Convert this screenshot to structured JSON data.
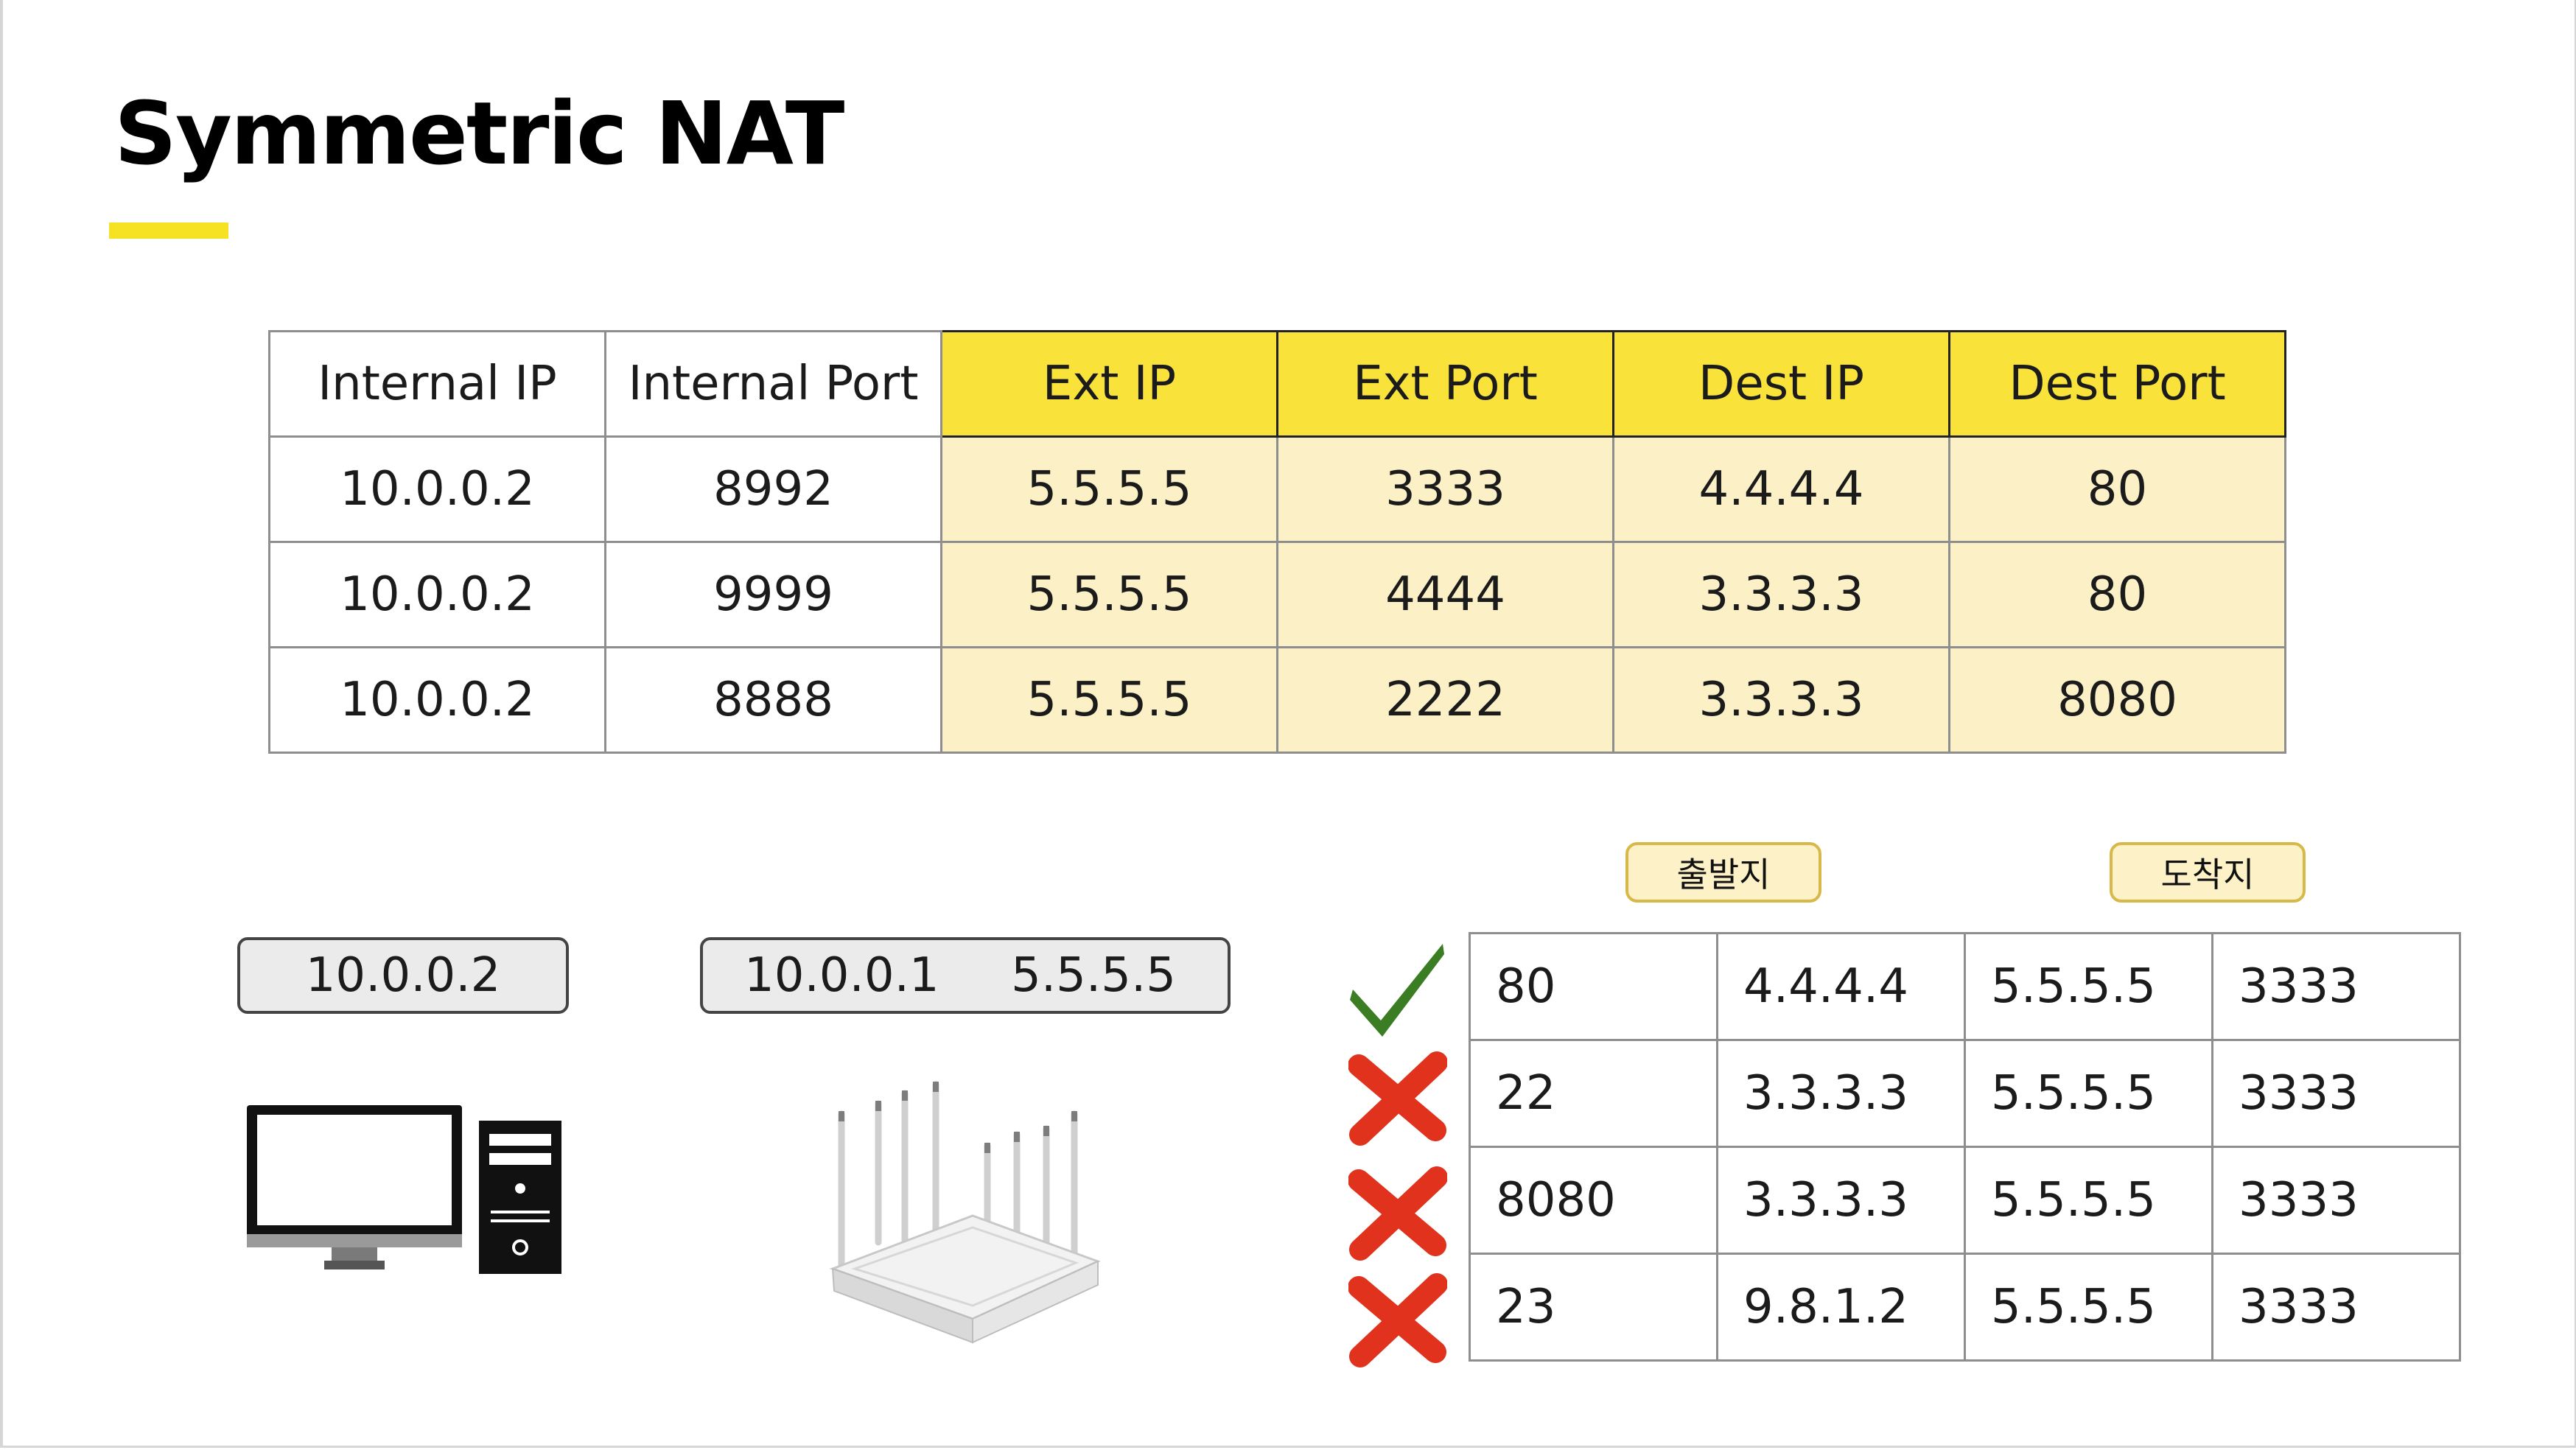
{
  "title": "Symmetric NAT",
  "nat_table": {
    "headers": [
      "Internal IP",
      "Internal Port",
      "Ext IP",
      "Ext Port",
      "Dest IP",
      "Dest Port"
    ],
    "rows": [
      [
        "10.0.0.2",
        "8992",
        "5.5.5.5",
        "3333",
        "4.4.4.4",
        "80"
      ],
      [
        "10.0.0.2",
        "9999",
        "5.5.5.5",
        "4444",
        "3.3.3.3",
        "80"
      ],
      [
        "10.0.0.2",
        "8888",
        "5.5.5.5",
        "2222",
        "3.3.3.3",
        "8080"
      ]
    ],
    "highlight_header_color": "#f9e23a",
    "highlight_cell_color": "#fcf1c6"
  },
  "tags": {
    "source": "출발지",
    "destination": "도착지"
  },
  "pc": {
    "ip": "10.0.0.2"
  },
  "router": {
    "internal_ip": "10.0.0.1",
    "external_ip": "5.5.5.5"
  },
  "packets": {
    "rows": [
      {
        "status": "allowed",
        "cells": [
          "80",
          "4.4.4.4",
          "5.5.5.5",
          "3333"
        ]
      },
      {
        "status": "blocked",
        "cells": [
          "22",
          "3.3.3.3",
          "5.5.5.5",
          "3333"
        ]
      },
      {
        "status": "blocked",
        "cells": [
          "8080",
          "3.3.3.3",
          "5.5.5.5",
          "3333"
        ]
      },
      {
        "status": "blocked",
        "cells": [
          "23",
          "9.8.1.2",
          "5.5.5.5",
          "3333"
        ]
      }
    ],
    "icons": {
      "allowed": "check-icon",
      "blocked": "cross-icon"
    },
    "colors": {
      "allowed": "#3b7d23",
      "blocked": "#e0321c"
    }
  },
  "accent_color": "#f7e123"
}
